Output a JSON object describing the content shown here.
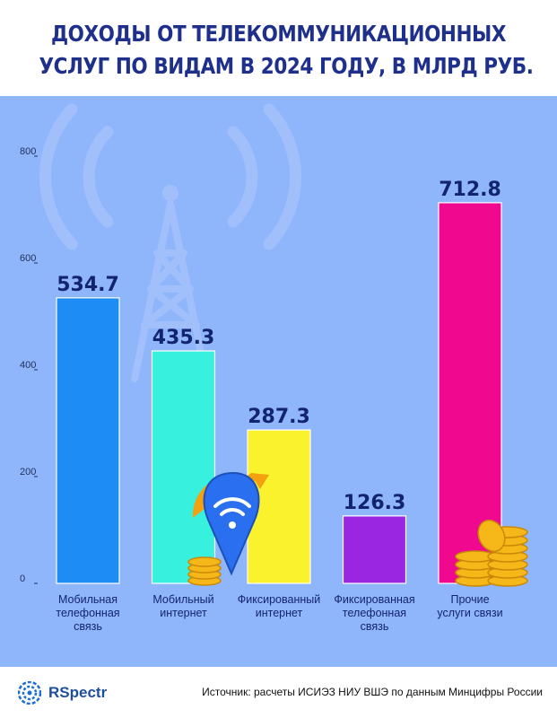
{
  "header": {
    "title_line1": "ДОХОДЫ ОТ ТЕЛЕКОММУНИКАЦИОННЫХ",
    "title_line2": "УСЛУГ ПО ВИДАМ В 2024 ГОДУ, В МЛРД РУБ."
  },
  "chart_data": {
    "type": "bar",
    "title": "ДОХОДЫ ОТ ТЕЛЕКОММУНИКАЦИОННЫХ УСЛУГ ПО ВИДАМ В 2024 ГОДУ, В МЛРД РУБ.",
    "categories": [
      [
        "Мобильная",
        "телефонная",
        "связь"
      ],
      [
        "Мобильный",
        "интернет"
      ],
      [
        "Фиксированный",
        "интернет"
      ],
      [
        "Фиксированная",
        "телефонная",
        "связь"
      ],
      [
        "Прочие",
        "услуги связи"
      ]
    ],
    "values": [
      534.7,
      435.3,
      287.3,
      126.3,
      712.8
    ],
    "value_labels": [
      "534.7",
      "435.3",
      "287.3",
      "126.3",
      "712.8"
    ],
    "colors": [
      "#1e8cf5",
      "#38f0de",
      "#fbf22e",
      "#9b26e1",
      "#f0088e"
    ],
    "yticks": [
      "0",
      "200",
      "400",
      "600",
      "800"
    ],
    "ylim": [
      0,
      800
    ],
    "xlabel": "",
    "ylabel": "",
    "grid": false,
    "legend": "none"
  },
  "decor": {
    "tower_icon": "radio-tower-icon",
    "wifi_pin_icon": "wifi-location-pin-icon",
    "coin_icon": "coin-stack-icon"
  },
  "footer": {
    "logo_text": "RSpectr",
    "logo_icon": "rspectr-logo-icon",
    "source": "Источник: расчеты ИСИЭЗ НИУ ВШЭ по данным Минцифры России"
  }
}
